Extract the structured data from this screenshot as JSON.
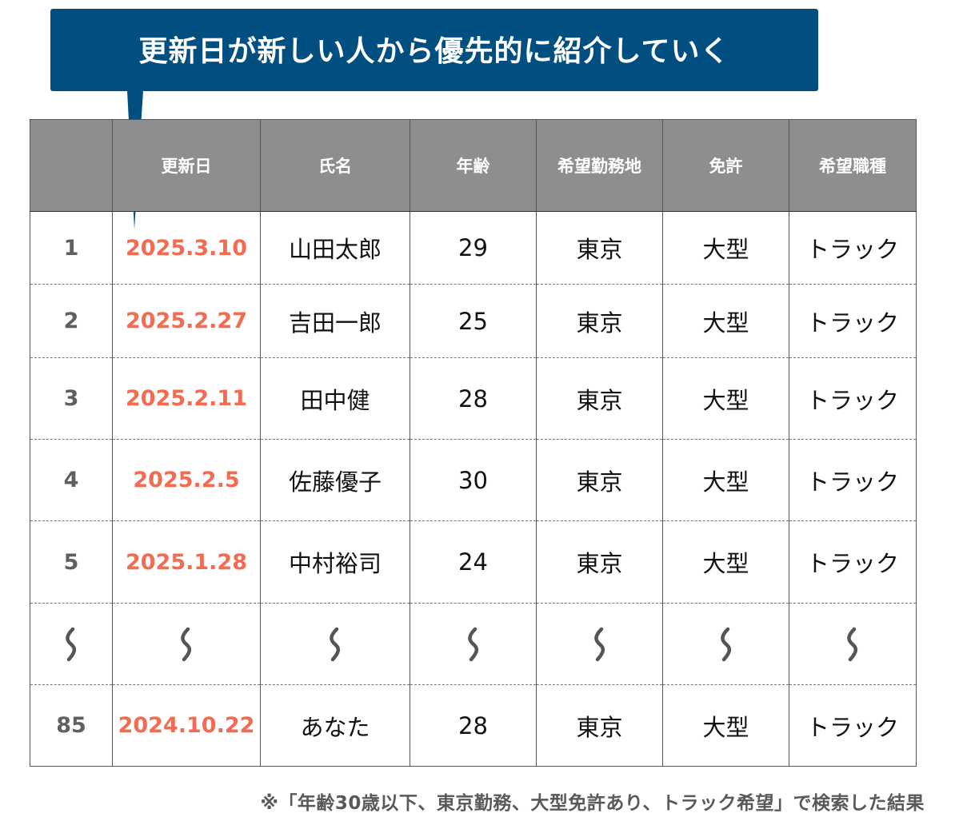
{
  "callout": {
    "text": "更新日が新しい人から優先的に紹介していく"
  },
  "table": {
    "headers": [
      "",
      "更新日",
      "氏名",
      "年齢",
      "希望勤務地",
      "免許",
      "希望職種"
    ],
    "rows": [
      [
        "1",
        "2025.3.10",
        "山田太郎",
        "29",
        "東京",
        "大型",
        "トラック"
      ],
      [
        "2",
        "2025.2.27",
        "吉田一郎",
        "25",
        "東京",
        "大型",
        "トラック"
      ],
      [
        "3",
        "2025.2.11",
        "田中健",
        "28",
        "東京",
        "大型",
        "トラック"
      ],
      [
        "4",
        "2025.2.5",
        "佐藤優子",
        "30",
        "東京",
        "大型",
        "トラック"
      ],
      [
        "5",
        "2025.1.28",
        "中村裕司",
        "24",
        "東京",
        "大型",
        "トラック"
      ]
    ],
    "last_row": [
      "85",
      "2024.10.22",
      "あなた",
      "28",
      "東京",
      "大型",
      "トラック"
    ]
  },
  "footnote": "※「年齢30歳以下、東京勤務、大型免許あり、トラック希望」で検索した結果",
  "colors": {
    "callout_bg": "#004f80",
    "header_bg": "#8e8e8e",
    "date_text": "#f36b50",
    "index_text": "#5f5f5f"
  },
  "icons": {
    "omission": "wave-dash-icon"
  }
}
